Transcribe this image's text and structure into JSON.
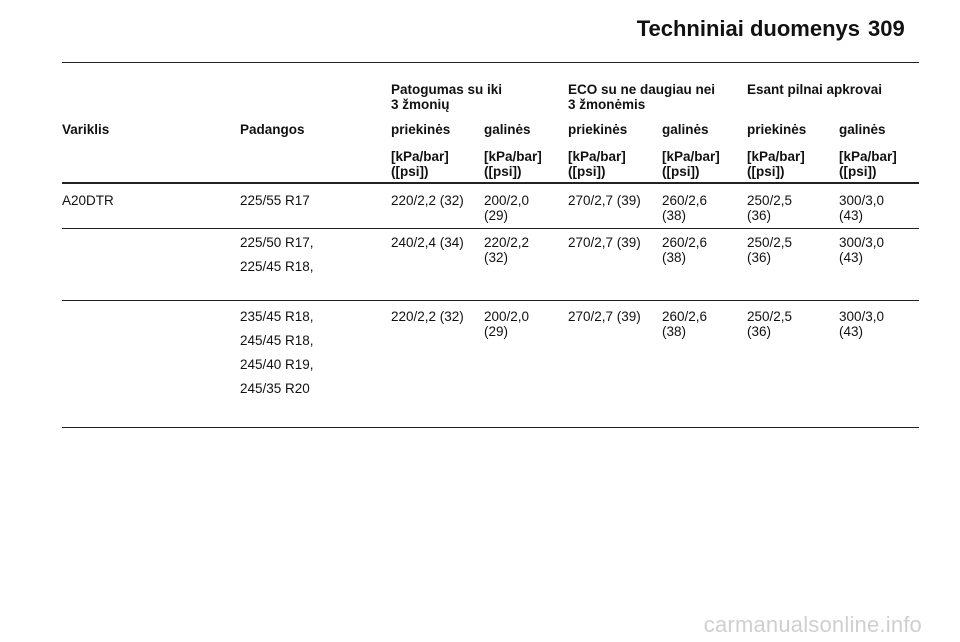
{
  "header": {
    "title": "Techniniai duomenys",
    "page_number": "309"
  },
  "table": {
    "group_headers": [
      "Patogumas su iki\n3 žmonių",
      "ECO su ne daugiau nei\n3 žmonėmis",
      "Esant pilnai apkrovai"
    ],
    "columns": [
      "Variklis",
      "Padangos",
      "priekinės",
      "galinės",
      "priekinės",
      "galinės",
      "priekinės",
      "galinės"
    ],
    "unit": "[kPa/bar]\n([psi])",
    "rows": [
      {
        "engine": "A20DTR",
        "tyres": [
          "225/55 R17"
        ],
        "values": [
          "220/2,2 (32)",
          "200/2,0\n(29)",
          "270/2,7 (39)",
          "260/2,6\n(38)",
          "250/2,5\n(36)",
          "300/3,0\n(43)"
        ]
      },
      {
        "engine": "",
        "tyres": [
          "225/50 R17,",
          "225/45 R18,"
        ],
        "values": [
          "240/2,4 (34)",
          "220/2,2\n(32)",
          "270/2,7 (39)",
          "260/2,6\n(38)",
          "250/2,5\n(36)",
          "300/3,0\n(43)"
        ]
      },
      {
        "engine": "",
        "tyres": [
          "235/45 R18,",
          "245/45 R18,",
          "245/40 R19,",
          "245/35 R20"
        ],
        "values": [
          "220/2,2 (32)",
          "200/2,0\n(29)",
          "270/2,7 (39)",
          "260/2,6\n(38)",
          "250/2,5\n(36)",
          "300/3,0\n(43)"
        ]
      }
    ]
  },
  "watermark": "carmanualsonline.info"
}
